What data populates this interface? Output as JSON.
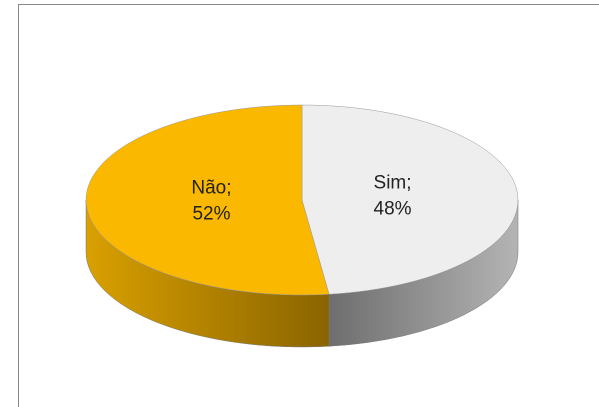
{
  "chart_data": {
    "type": "pie",
    "categories": [
      "Sim;",
      "Não;"
    ],
    "values": [
      48,
      52
    ],
    "value_labels": [
      "48%",
      "52%"
    ],
    "colors": [
      "#eeeeee",
      "#fbb800"
    ]
  }
}
